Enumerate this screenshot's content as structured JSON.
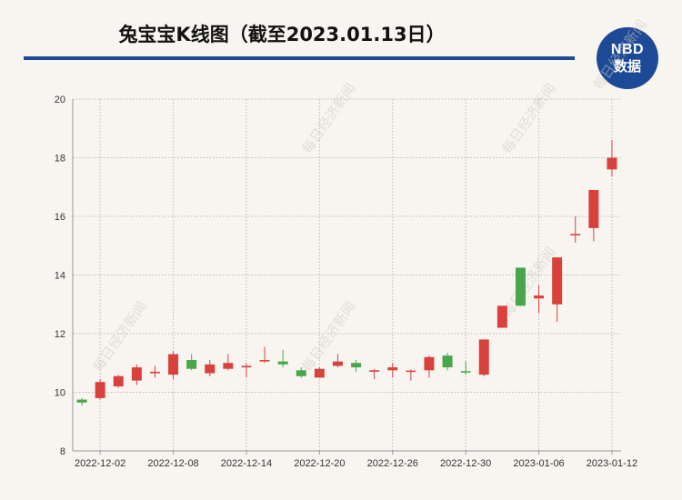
{
  "title": "兔宝宝K线图（截至2023.01.13日）",
  "logo": {
    "top": "NBD",
    "bottom": "数据",
    "color": "#1d4a96"
  },
  "watermark_text": "每日经济新闻",
  "colors": {
    "up": "#d9413c",
    "down": "#4aa64a",
    "axis": "#999999",
    "grid": "#bbbbbb"
  },
  "chart_data": {
    "type": "candlestick",
    "title": "兔宝宝K线图（截至2023.01.13日）",
    "ylim": [
      8,
      20
    ],
    "yticks": [
      8,
      10,
      12,
      14,
      16,
      18,
      20
    ],
    "grid": true,
    "xtick_labels": [
      "2022-12-02",
      "2022-12-08",
      "2022-12-14",
      "2022-12-20",
      "2022-12-26",
      "2022-12-30",
      "2023-01-06",
      "2023-01-12"
    ],
    "xtick_indices": [
      1,
      5,
      9,
      13,
      17,
      21,
      25,
      29
    ],
    "candles": [
      {
        "open": 9.75,
        "close": 9.65,
        "high": 9.8,
        "low": 9.55
      },
      {
        "open": 9.8,
        "close": 10.35,
        "high": 10.45,
        "low": 9.75
      },
      {
        "open": 10.2,
        "close": 10.55,
        "high": 10.6,
        "low": 10.15
      },
      {
        "open": 10.4,
        "close": 10.85,
        "high": 10.95,
        "low": 10.25
      },
      {
        "open": 10.65,
        "close": 10.7,
        "high": 10.9,
        "low": 10.5
      },
      {
        "open": 10.6,
        "close": 11.3,
        "high": 11.4,
        "low": 10.45
      },
      {
        "open": 11.1,
        "close": 10.8,
        "high": 11.3,
        "low": 10.75
      },
      {
        "open": 10.65,
        "close": 10.95,
        "high": 11.1,
        "low": 10.55
      },
      {
        "open": 10.8,
        "close": 11.0,
        "high": 11.3,
        "low": 10.75
      },
      {
        "open": 10.85,
        "close": 10.9,
        "high": 11.0,
        "low": 10.5
      },
      {
        "open": 11.05,
        "close": 11.1,
        "high": 11.55,
        "low": 11.0
      },
      {
        "open": 11.05,
        "close": 10.95,
        "high": 11.45,
        "low": 10.85
      },
      {
        "open": 10.75,
        "close": 10.55,
        "high": 10.85,
        "low": 10.5
      },
      {
        "open": 10.5,
        "close": 10.8,
        "high": 10.85,
        "low": 10.5
      },
      {
        "open": 10.9,
        "close": 11.05,
        "high": 11.3,
        "low": 10.85
      },
      {
        "open": 11.0,
        "close": 10.85,
        "high": 11.1,
        "low": 10.7
      },
      {
        "open": 10.7,
        "close": 10.75,
        "high": 10.8,
        "low": 10.45
      },
      {
        "open": 10.75,
        "close": 10.85,
        "high": 11.0,
        "low": 10.5
      },
      {
        "open": 10.72,
        "close": 10.74,
        "high": 10.78,
        "low": 10.4
      },
      {
        "open": 10.75,
        "close": 11.2,
        "high": 11.25,
        "low": 10.5
      },
      {
        "open": 11.25,
        "close": 10.85,
        "high": 11.35,
        "low": 10.75
      },
      {
        "open": 10.72,
        "close": 10.68,
        "high": 11.05,
        "low": 10.6
      },
      {
        "open": 10.6,
        "close": 11.8,
        "high": 11.8,
        "low": 10.55
      },
      {
        "open": 12.2,
        "close": 12.95,
        "high": 12.95,
        "low": 12.2
      },
      {
        "open": 14.25,
        "close": 12.95,
        "high": 14.25,
        "low": 12.95
      },
      {
        "open": 13.2,
        "close": 13.3,
        "high": 13.65,
        "low": 12.7
      },
      {
        "open": 13.0,
        "close": 14.6,
        "high": 14.6,
        "low": 12.4
      },
      {
        "open": 15.35,
        "close": 15.4,
        "high": 16.0,
        "low": 15.1
      },
      {
        "open": 15.6,
        "close": 16.9,
        "high": 16.9,
        "low": 15.15
      },
      {
        "open": 17.6,
        "close": 18.0,
        "high": 18.6,
        "low": 17.35
      }
    ]
  }
}
